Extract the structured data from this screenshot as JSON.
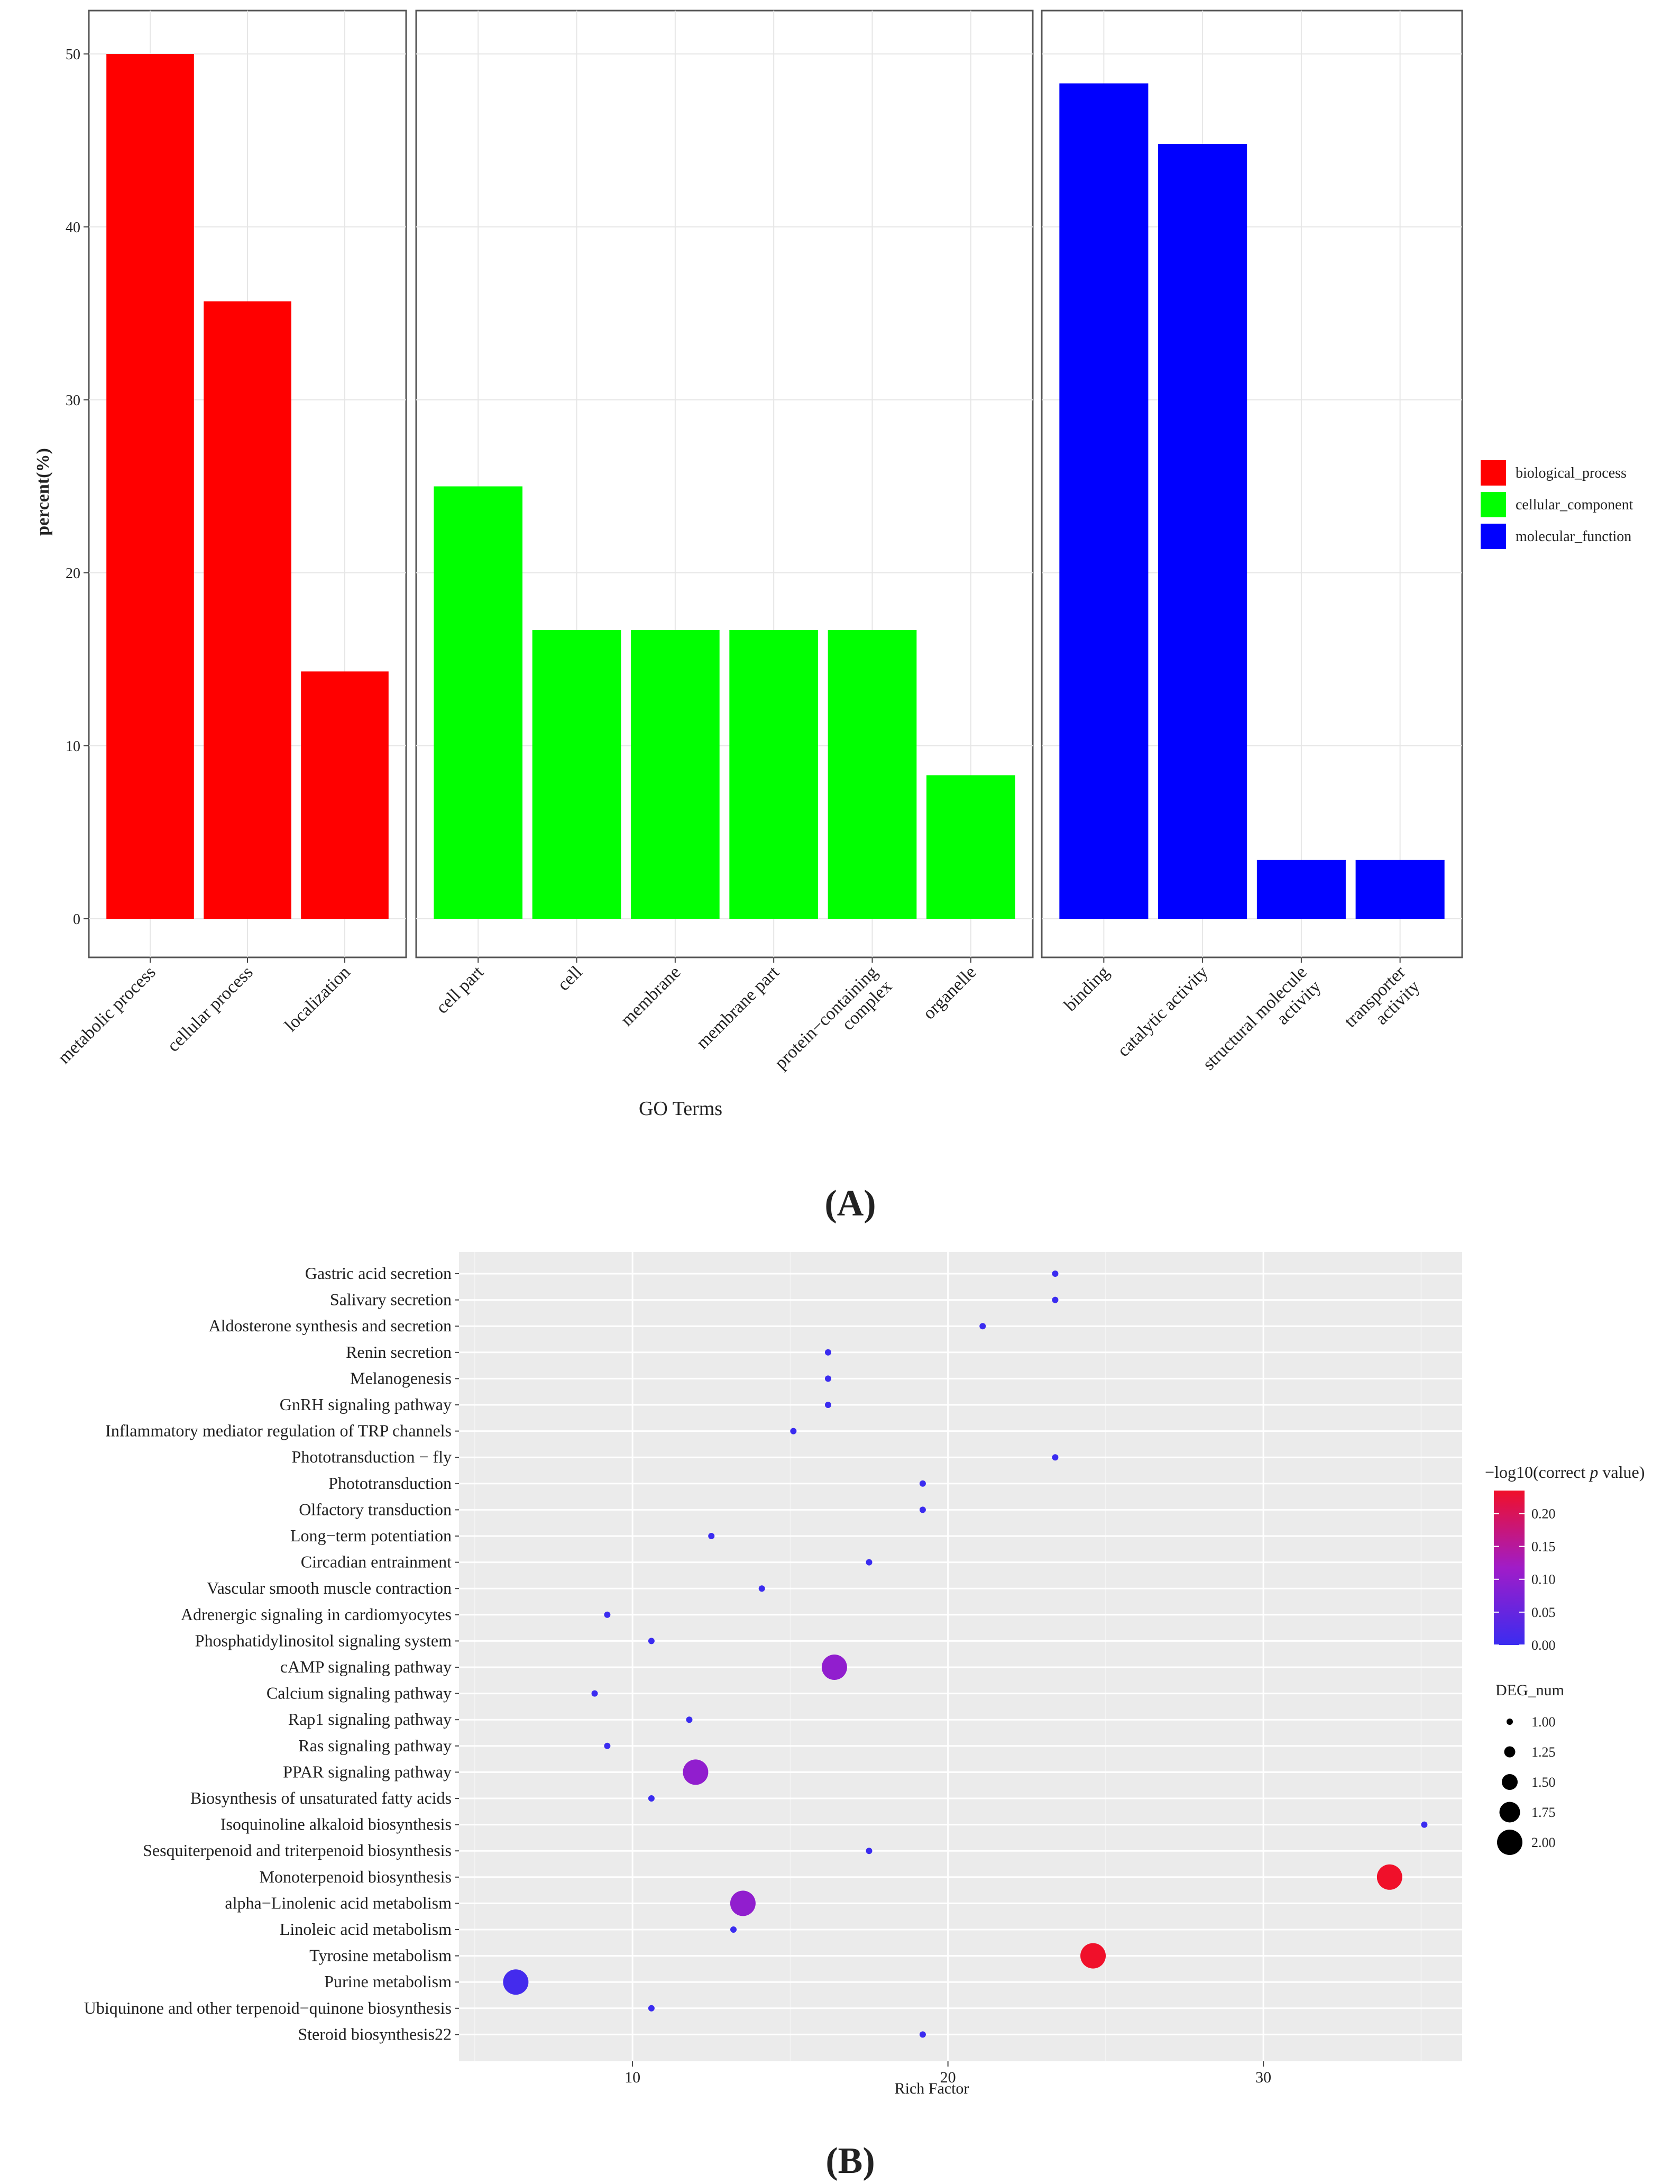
{
  "panels": {
    "a_label": "A",
    "b_label": "B"
  },
  "colors": {
    "biological_process": "#ff0000",
    "cellular_component": "#00ff00",
    "molecular_function": "#0000ff",
    "grad_low": "#3b2cf0",
    "grad_high": "#f0102a",
    "panel_bg": "#ebebeb"
  },
  "chart_data": [
    {
      "type": "bar",
      "title": "",
      "xlabel": "GO Terms",
      "ylabel": "percent(%)",
      "ylim": [
        0,
        53
      ],
      "yticks": [
        0,
        10,
        20,
        30,
        40,
        50
      ],
      "legend_position": "right",
      "facets": [
        {
          "name": "biological_process",
          "color": "#ff0000",
          "categories": [
            "metabolic process",
            "cellular process",
            "localization"
          ],
          "values": [
            50.0,
            35.7,
            14.3
          ]
        },
        {
          "name": "cellular_component",
          "color": "#00ff00",
          "categories": [
            "cell part",
            "cell",
            "membrane",
            "membrane part",
            "protein−containing complex",
            "organelle"
          ],
          "values": [
            25.0,
            16.7,
            16.7,
            16.7,
            16.7,
            8.3
          ]
        },
        {
          "name": "molecular_function",
          "color": "#0000ff",
          "categories": [
            "binding",
            "catalytic activity",
            "structural molecule activity",
            "transporter activity"
          ],
          "values": [
            48.3,
            44.8,
            3.4,
            3.4
          ]
        }
      ],
      "legend": [
        "biological_process",
        "cellular_component",
        "molecular_function"
      ]
    },
    {
      "type": "scatter",
      "title": "",
      "xlabel": "Rich Factor",
      "ylabel": "",
      "xlim": [
        4.5,
        36.3
      ],
      "xticks": [
        10,
        20,
        30
      ],
      "size_legend_title": "DEG_num",
      "size_legend": [
        1.0,
        1.25,
        1.5,
        1.75,
        2.0
      ],
      "color_legend_title_prefix": "−log10(correct ",
      "color_legend_title_p": "p",
      "color_legend_title_suffix": " value)",
      "color_range": [
        0,
        0.235
      ],
      "color_ticks": [
        "0.20",
        "0.15",
        "0.10",
        "0.05",
        "0.00"
      ],
      "color_tick_values": [
        0.2,
        0.15,
        0.1,
        0.05,
        0.0
      ],
      "points": [
        {
          "term": "Gastric acid secretion",
          "rich": 23.4,
          "deg": 1,
          "logp": 0.0
        },
        {
          "term": "Salivary secretion",
          "rich": 23.4,
          "deg": 1,
          "logp": 0.0
        },
        {
          "term": "Aldosterone synthesis and secretion",
          "rich": 21.1,
          "deg": 1,
          "logp": 0.0
        },
        {
          "term": "Renin secretion",
          "rich": 16.2,
          "deg": 1,
          "logp": 0.0
        },
        {
          "term": "Melanogenesis",
          "rich": 16.2,
          "deg": 1,
          "logp": 0.0
        },
        {
          "term": "GnRH signaling pathway",
          "rich": 16.2,
          "deg": 1,
          "logp": 0.0
        },
        {
          "term": "Inflammatory mediator regulation of TRP channels",
          "rich": 15.1,
          "deg": 1,
          "logp": 0.0
        },
        {
          "term": "Phototransduction − fly",
          "rich": 23.4,
          "deg": 1,
          "logp": 0.0
        },
        {
          "term": "Phototransduction",
          "rich": 19.2,
          "deg": 1,
          "logp": 0.0
        },
        {
          "term": "Olfactory transduction",
          "rich": 19.2,
          "deg": 1,
          "logp": 0.0
        },
        {
          "term": "Long−term potentiation",
          "rich": 12.5,
          "deg": 1,
          "logp": 0.0
        },
        {
          "term": "Circadian entrainment",
          "rich": 17.5,
          "deg": 1,
          "logp": 0.0
        },
        {
          "term": "Vascular smooth muscle contraction",
          "rich": 14.1,
          "deg": 1,
          "logp": 0.0
        },
        {
          "term": "Adrenergic signaling in cardiomyocytes",
          "rich": 9.2,
          "deg": 1,
          "logp": 0.0
        },
        {
          "term": "Phosphatidylinositol signaling system",
          "rich": 10.6,
          "deg": 1,
          "logp": 0.0
        },
        {
          "term": "cAMP signaling pathway",
          "rich": 16.4,
          "deg": 2,
          "logp": 0.1
        },
        {
          "term": "Calcium signaling pathway",
          "rich": 8.8,
          "deg": 1,
          "logp": 0.0
        },
        {
          "term": "Rap1 signaling pathway",
          "rich": 11.8,
          "deg": 1,
          "logp": 0.0
        },
        {
          "term": "Ras signaling pathway",
          "rich": 9.2,
          "deg": 1,
          "logp": 0.0
        },
        {
          "term": "PPAR signaling pathway",
          "rich": 12.0,
          "deg": 2,
          "logp": 0.1
        },
        {
          "term": "Biosynthesis of unsaturated fatty acids",
          "rich": 10.6,
          "deg": 1,
          "logp": 0.0
        },
        {
          "term": "Isoquinoline alkaloid biosynthesis",
          "rich": 35.1,
          "deg": 1,
          "logp": 0.0
        },
        {
          "term": "Sesquiterpenoid and triterpenoid biosynthesis",
          "rich": 17.5,
          "deg": 1,
          "logp": 0.0
        },
        {
          "term": "Monoterpenoid biosynthesis",
          "rich": 34.0,
          "deg": 2,
          "logp": 0.235
        },
        {
          "term": "alpha−Linolenic acid metabolism",
          "rich": 13.5,
          "deg": 2,
          "logp": 0.1
        },
        {
          "term": "Linoleic acid metabolism",
          "rich": 13.2,
          "deg": 1,
          "logp": 0.0
        },
        {
          "term": "Tyrosine metabolism",
          "rich": 24.6,
          "deg": 2,
          "logp": 0.235
        },
        {
          "term": "Purine metabolism",
          "rich": 6.3,
          "deg": 2,
          "logp": 0.01
        },
        {
          "term": "Ubiquinone and other terpenoid−quinone biosynthesis",
          "rich": 10.6,
          "deg": 1,
          "logp": 0.0
        },
        {
          "term": "Steroid biosynthesis22",
          "rich": 19.2,
          "deg": 1,
          "logp": 0.0
        }
      ]
    }
  ]
}
